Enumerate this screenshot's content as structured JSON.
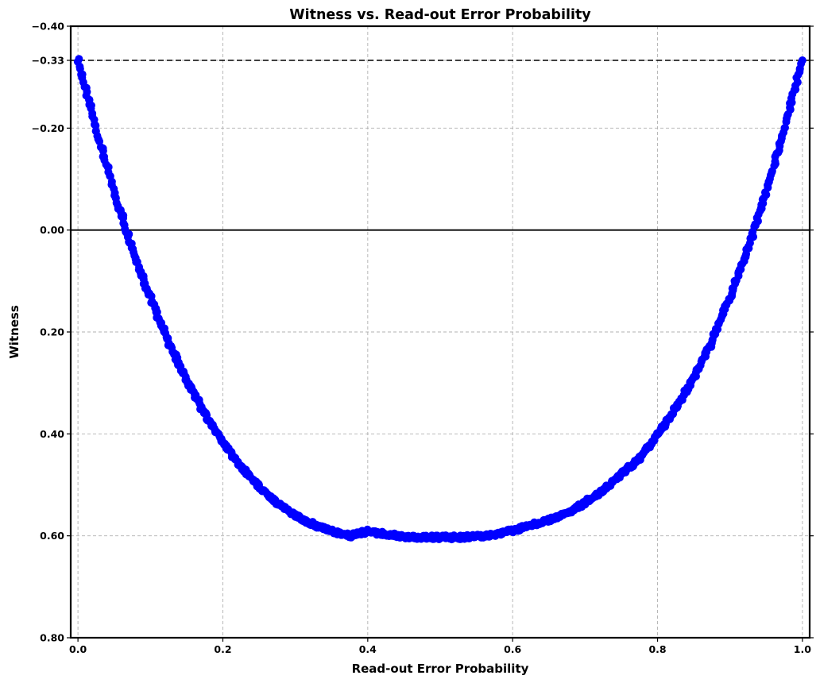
{
  "chart_data": {
    "type": "scatter",
    "title": "Witness vs. Read-out Error Probability",
    "xlabel": "Read-out Error Probability",
    "ylabel": "Witness",
    "xlim": [
      -0.01,
      1.01
    ],
    "ylim": [
      -0.4,
      0.8
    ],
    "y_inverted": true,
    "grid": true,
    "point_color": "#0000ff",
    "x_ticks": [
      {
        "value": 0.0,
        "label": "0.0"
      },
      {
        "value": 0.2,
        "label": "0.2"
      },
      {
        "value": 0.4,
        "label": "0.4"
      },
      {
        "value": 0.6,
        "label": "0.6"
      },
      {
        "value": 0.8,
        "label": "0.8"
      },
      {
        "value": 1.0,
        "label": "1.0"
      }
    ],
    "y_ticks": [
      {
        "value": -0.4,
        "label": "−0.40"
      },
      {
        "value": -0.333,
        "label": "−0.33"
      },
      {
        "value": -0.2,
        "label": "−0.20"
      },
      {
        "value": 0.0,
        "label": "0.00"
      },
      {
        "value": 0.2,
        "label": "0.20"
      },
      {
        "value": 0.4,
        "label": "0.40"
      },
      {
        "value": 0.6,
        "label": "0.60"
      },
      {
        "value": 0.8,
        "label": "0.80"
      }
    ],
    "reference_lines": [
      {
        "y": -0.333,
        "style": "dashed"
      },
      {
        "y": 0.0,
        "style": "solid"
      }
    ],
    "series": [
      {
        "x": [
          0.0,
          0.025,
          0.05,
          0.075,
          0.1,
          0.125,
          0.15,
          0.175,
          0.2,
          0.225,
          0.25,
          0.275,
          0.3,
          0.325,
          0.35,
          0.375,
          0.4,
          0.425,
          0.45,
          0.475,
          0.5,
          0.525,
          0.55,
          0.575,
          0.6,
          0.625,
          0.65,
          0.675,
          0.7,
          0.725,
          0.75,
          0.775,
          0.8,
          0.825,
          0.85,
          0.875,
          0.9,
          0.925,
          0.95,
          0.975,
          1.0
        ],
        "y": [
          -0.333,
          -0.198,
          -0.075,
          0.035,
          0.133,
          0.219,
          0.295,
          0.36,
          0.417,
          0.464,
          0.503,
          0.535,
          0.56,
          0.578,
          0.591,
          0.6,
          0.591,
          0.597,
          0.601,
          0.603,
          0.603,
          0.603,
          0.601,
          0.597,
          0.59,
          0.579,
          0.569,
          0.555,
          0.535,
          0.511,
          0.478,
          0.45,
          0.4,
          0.351,
          0.29,
          0.219,
          0.133,
          0.035,
          -0.075,
          -0.198,
          -0.333
        ]
      }
    ]
  }
}
